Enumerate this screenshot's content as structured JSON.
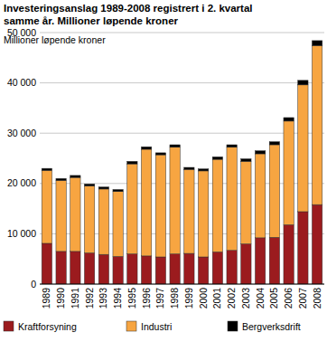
{
  "chart_data": {
    "type": "bar",
    "title": "Investeringsanslag 1989-2008 registrert i 2. kvartal\nsamme år. Millioner løpende kroner",
    "y_label": "Millioner løpende kroner",
    "categories": [
      "1989",
      "1990",
      "1991",
      "1992",
      "1993",
      "1994",
      "1995",
      "1996",
      "1997",
      "1998",
      "1999",
      "2000",
      "2001",
      "2002",
      "2003",
      "2004",
      "2005",
      "2006",
      "2007",
      "2008"
    ],
    "series": [
      {
        "name": "Kraftforsyning",
        "color": "#9b1b1e",
        "values": [
          8100,
          6500,
          6500,
          6200,
          5900,
          5500,
          6000,
          5600,
          5400,
          6000,
          6100,
          5400,
          6400,
          6700,
          8000,
          9200,
          9300,
          11800,
          14400,
          15800
        ]
      },
      {
        "name": "Industri",
        "color": "#f7a541",
        "values": [
          14500,
          14100,
          14700,
          13300,
          13000,
          12900,
          17900,
          21200,
          20300,
          21200,
          16700,
          17100,
          18400,
          20500,
          16400,
          16700,
          18400,
          20600,
          25200,
          31600
        ]
      },
      {
        "name": "Bergverksdrift",
        "color": "#000000",
        "values": [
          400,
          400,
          400,
          400,
          400,
          400,
          500,
          500,
          400,
          500,
          400,
          400,
          500,
          500,
          500,
          600,
          600,
          700,
          900,
          1000
        ]
      }
    ],
    "ylim": [
      0,
      50000
    ],
    "yticks": [
      0,
      {
        "value": 10000,
        "label": "10 000"
      },
      {
        "value": 20000,
        "label": "20 000"
      },
      {
        "value": 30000,
        "label": "30 000"
      },
      {
        "value": 40000,
        "label": "40 000"
      },
      {
        "value": 50000,
        "label": "50 000"
      }
    ],
    "stacked": true,
    "grid": true,
    "legend": "bottom"
  }
}
